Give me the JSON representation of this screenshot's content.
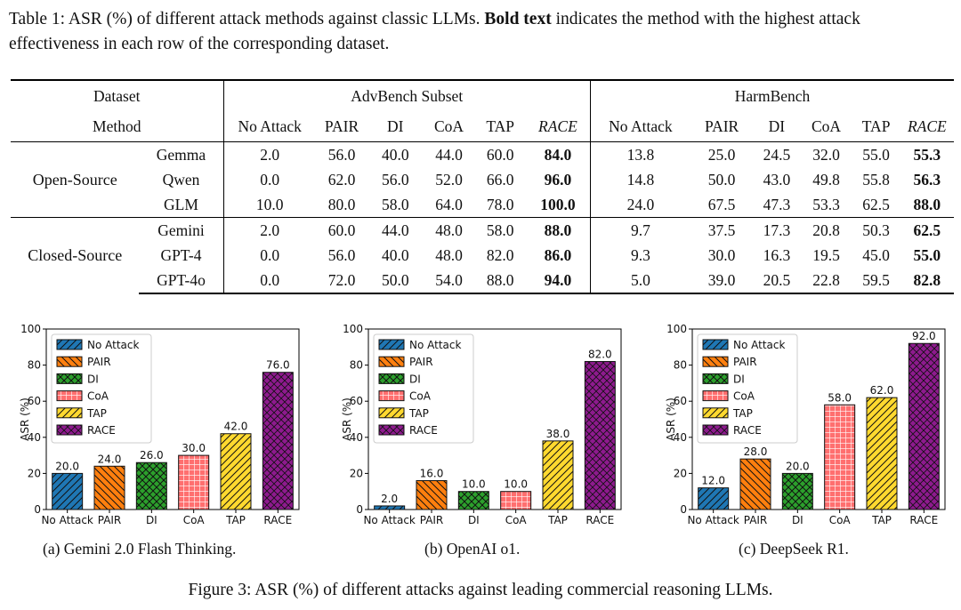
{
  "table_caption": {
    "prefix": "Table 1: ASR (%) of different attack methods against classic LLMs.",
    "bold": "Bold text",
    "suffix": "indicates the method with the highest attack effectiveness in each row of the corresponding dataset."
  },
  "table": {
    "dataset_label": "Dataset",
    "method_label": "Method",
    "datasets": [
      "AdvBench Subset",
      "HarmBench"
    ],
    "methods": [
      "No Attack",
      "PAIR",
      "DI",
      "CoA",
      "TAP",
      "RACE"
    ],
    "groups": [
      {
        "name": "Open-Source",
        "rows": [
          {
            "model": "Gemma",
            "advbench": [
              "2.0",
              "56.0",
              "40.0",
              "44.0",
              "60.0",
              "84.0"
            ],
            "harmbench": [
              "13.8",
              "25.0",
              "24.5",
              "32.0",
              "55.0",
              "55.3"
            ]
          },
          {
            "model": "Qwen",
            "advbench": [
              "0.0",
              "62.0",
              "56.0",
              "52.0",
              "66.0",
              "96.0"
            ],
            "harmbench": [
              "14.8",
              "50.0",
              "43.0",
              "49.8",
              "55.8",
              "56.3"
            ]
          },
          {
            "model": "GLM",
            "advbench": [
              "10.0",
              "80.0",
              "58.0",
              "64.0",
              "78.0",
              "100.0"
            ],
            "harmbench": [
              "24.0",
              "67.5",
              "47.3",
              "53.3",
              "62.5",
              "88.0"
            ]
          }
        ]
      },
      {
        "name": "Closed-Source",
        "rows": [
          {
            "model": "Gemini",
            "advbench": [
              "2.0",
              "60.0",
              "44.0",
              "48.0",
              "58.0",
              "88.0"
            ],
            "harmbench": [
              "9.7",
              "37.5",
              "17.3",
              "20.8",
              "50.3",
              "62.5"
            ]
          },
          {
            "model": "GPT-4",
            "advbench": [
              "0.0",
              "56.0",
              "40.0",
              "48.0",
              "82.0",
              "86.0"
            ],
            "harmbench": [
              "9.3",
              "30.0",
              "16.3",
              "19.5",
              "45.0",
              "55.0"
            ]
          },
          {
            "model": "GPT-4o",
            "advbench": [
              "0.0",
              "72.0",
              "50.0",
              "54.0",
              "88.0",
              "94.0"
            ],
            "harmbench": [
              "5.0",
              "39.0",
              "20.5",
              "22.8",
              "59.5",
              "82.8"
            ]
          }
        ]
      }
    ]
  },
  "chart_data": [
    {
      "type": "bar",
      "caption": "(a) Gemini 2.0 Flash Thinking.",
      "categories": [
        "No Attack",
        "PAIR",
        "DI",
        "CoA",
        "TAP",
        "RACE"
      ],
      "values": [
        20.0,
        24.0,
        26.0,
        30.0,
        42.0,
        76.0
      ],
      "value_labels": [
        "20.0",
        "24.0",
        "26.0",
        "30.0",
        "42.0",
        "76.0"
      ],
      "ylabel": "ASR (%)",
      "ylim": [
        0,
        100
      ],
      "yticks": [
        "0",
        "20",
        "40",
        "60",
        "80",
        "100"
      ],
      "legend": [
        "No Attack",
        "PAIR",
        "DI",
        "CoA",
        "TAP",
        "RACE"
      ],
      "legend_position": "top-left"
    },
    {
      "type": "bar",
      "caption": "(b) OpenAI o1.",
      "categories": [
        "No Attack",
        "PAIR",
        "DI",
        "CoA",
        "TAP",
        "RACE"
      ],
      "values": [
        2.0,
        16.0,
        10.0,
        10.0,
        38.0,
        82.0
      ],
      "value_labels": [
        "2.0",
        "16.0",
        "10.0",
        "10.0",
        "38.0",
        "82.0"
      ],
      "ylabel": "ASR (%)",
      "ylim": [
        0,
        100
      ],
      "yticks": [
        "0",
        "20",
        "40",
        "60",
        "80",
        "100"
      ],
      "legend": [
        "No Attack",
        "PAIR",
        "DI",
        "CoA",
        "TAP",
        "RACE"
      ],
      "legend_position": "top-left"
    },
    {
      "type": "bar",
      "caption": "(c) DeepSeek R1.",
      "categories": [
        "No Attack",
        "PAIR",
        "DI",
        "CoA",
        "TAP",
        "RACE"
      ],
      "values": [
        12.0,
        28.0,
        20.0,
        58.0,
        62.0,
        92.0
      ],
      "value_labels": [
        "12.0",
        "28.0",
        "20.0",
        "58.0",
        "62.0",
        "92.0"
      ],
      "ylabel": "ASR (%)",
      "ylim": [
        0,
        100
      ],
      "yticks": [
        "0",
        "20",
        "40",
        "60",
        "80",
        "100"
      ],
      "legend": [
        "No Attack",
        "PAIR",
        "DI",
        "CoA",
        "TAP",
        "RACE"
      ],
      "legend_position": "top-left"
    }
  ],
  "series_colors": [
    "#1f77b4",
    "#ff7f0e",
    "#2ca02c",
    "#ff6f6f",
    "#ffd92f",
    "#8e1a8e"
  ],
  "figure_caption": "Figure 3: ASR (%) of different attacks against leading commercial reasoning LLMs."
}
